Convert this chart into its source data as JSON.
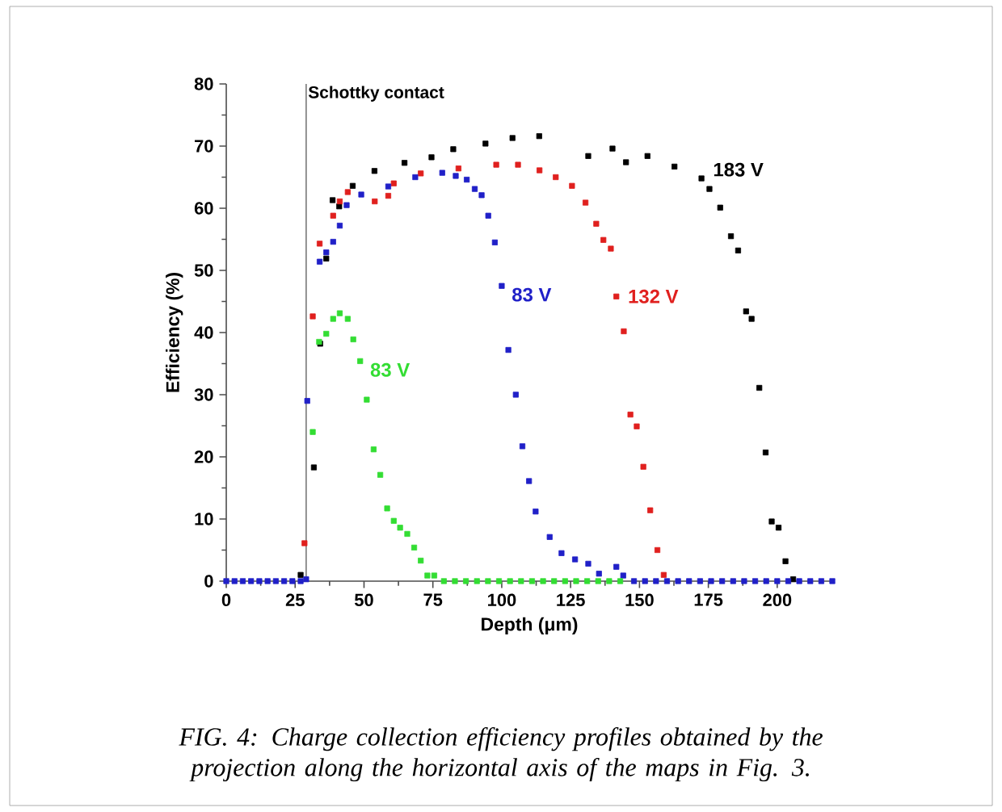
{
  "chart_data": {
    "type": "scatter",
    "xlabel": "Depth (μm)",
    "ylabel": "Efficiency (%)",
    "xlim": [
      0,
      220
    ],
    "ylim": [
      0,
      80
    ],
    "xticks": [
      0,
      25,
      50,
      75,
      100,
      125,
      150,
      175,
      200
    ],
    "yticks": [
      0,
      10,
      20,
      30,
      40,
      50,
      60,
      70,
      80
    ],
    "marker": "square",
    "grid": false,
    "ref_lines": [
      {
        "axis": "x",
        "value": 29,
        "label": "Schottky contact",
        "color": "#777777"
      }
    ],
    "series": [
      {
        "name": "183 V",
        "color": "#000000",
        "x": [
          27,
          31.8,
          34.1,
          36.3,
          38.6,
          41,
          45.9,
          53.8,
          64.7,
          74.5,
          82.4,
          94.1,
          103.9,
          113.6,
          131.4,
          140.2,
          145.1,
          152.9,
          162.7,
          172.5,
          175.4,
          179.3,
          183.2,
          185.8,
          188.7,
          190.7,
          193.5,
          195.8,
          198,
          200.5,
          203,
          205.8
        ],
        "values": [
          1,
          18.3,
          38.2,
          51.9,
          61.3,
          60.3,
          63.6,
          66,
          67.3,
          68.2,
          69.5,
          70.4,
          71.3,
          71.6,
          68.4,
          69.6,
          67.4,
          68.4,
          66.7,
          64.8,
          63.1,
          60.1,
          55.5,
          53.2,
          43.4,
          42.2,
          31.1,
          20.7,
          9.6,
          8.6,
          3.2,
          0.3
        ]
      },
      {
        "name": "132 V",
        "color": "#e0201e",
        "x": [
          28.4,
          31.4,
          33.9,
          38.8,
          41.2,
          44.1,
          53.9,
          58.8,
          60.8,
          70.6,
          84.3,
          98,
          105.9,
          113.7,
          119.6,
          125.5,
          130.4,
          134.3,
          136.9,
          139.6,
          141.6,
          144.3,
          146.7,
          149,
          151.4,
          153.9,
          156.5,
          158.8
        ],
        "values": [
          6.1,
          42.6,
          54.3,
          58.8,
          61.1,
          62.6,
          61.1,
          62,
          64,
          65.6,
          66.4,
          67,
          67,
          66.1,
          65,
          63.6,
          60.9,
          57.5,
          54.9,
          53.5,
          45.8,
          40.2,
          26.8,
          24.9,
          18.4,
          11.4,
          5,
          1
        ]
      },
      {
        "name": "83 V",
        "color": "#2020c8",
        "x": [
          0,
          3,
          6,
          9,
          12,
          15,
          18,
          21,
          24,
          27,
          29,
          29.4,
          33.9,
          36.3,
          38.8,
          41.2,
          43.7,
          49,
          58.8,
          68.6,
          78.4,
          83.3,
          87.3,
          90.2,
          92.7,
          95.1,
          97.5,
          100,
          102.4,
          105.1,
          107.5,
          109.9,
          112.3,
          117.4,
          121.7,
          126.6,
          131.4,
          135.3,
          141.6,
          144.1,
          148,
          152,
          156,
          160,
          164,
          168,
          172,
          176,
          180,
          184,
          188,
          192,
          196,
          200,
          204,
          208,
          212,
          216,
          220
        ],
        "values": [
          0,
          0,
          0,
          0,
          0,
          0,
          0,
          0,
          0,
          0,
          0.3,
          29,
          51.4,
          52.9,
          54.6,
          57.2,
          60.5,
          62.2,
          63.5,
          65,
          65.7,
          65.2,
          64.6,
          63.1,
          62.1,
          58.8,
          54.5,
          47.5,
          37.2,
          30,
          21.7,
          16.1,
          11.2,
          7.1,
          4.5,
          3.5,
          2.8,
          1.2,
          2.3,
          0.9,
          0,
          0,
          0,
          0,
          0,
          0,
          0,
          0,
          0,
          0,
          0,
          0,
          0,
          0,
          0,
          0,
          0,
          0,
          0
        ]
      },
      {
        "name": "83 V",
        "color": "#33dd33",
        "x": [
          31.4,
          33.7,
          36.3,
          38.8,
          41.2,
          44.1,
          46.1,
          48.6,
          51,
          53.5,
          55.9,
          58.4,
          60.8,
          63.1,
          65.7,
          68.2,
          70.6,
          73,
          75.5,
          79,
          83,
          87,
          91,
          95,
          99,
          103,
          107,
          111,
          115,
          119,
          123,
          127,
          131,
          135,
          139,
          143
        ],
        "values": [
          24,
          38.5,
          39.8,
          42.2,
          43.1,
          42.2,
          38.9,
          35.4,
          29.2,
          21.2,
          17.1,
          11.7,
          9.7,
          8.6,
          7.6,
          5.4,
          3.3,
          0.9,
          0.9,
          0,
          0,
          0,
          0,
          0,
          0,
          0,
          0,
          0,
          0,
          0,
          0,
          0,
          0,
          0,
          0,
          0
        ]
      }
    ],
    "annotations": [
      "FIG. 4: Charge collection efficiency profiles obtained by the projection along the horizontal axis of the maps in Fig. 3."
    ]
  }
}
